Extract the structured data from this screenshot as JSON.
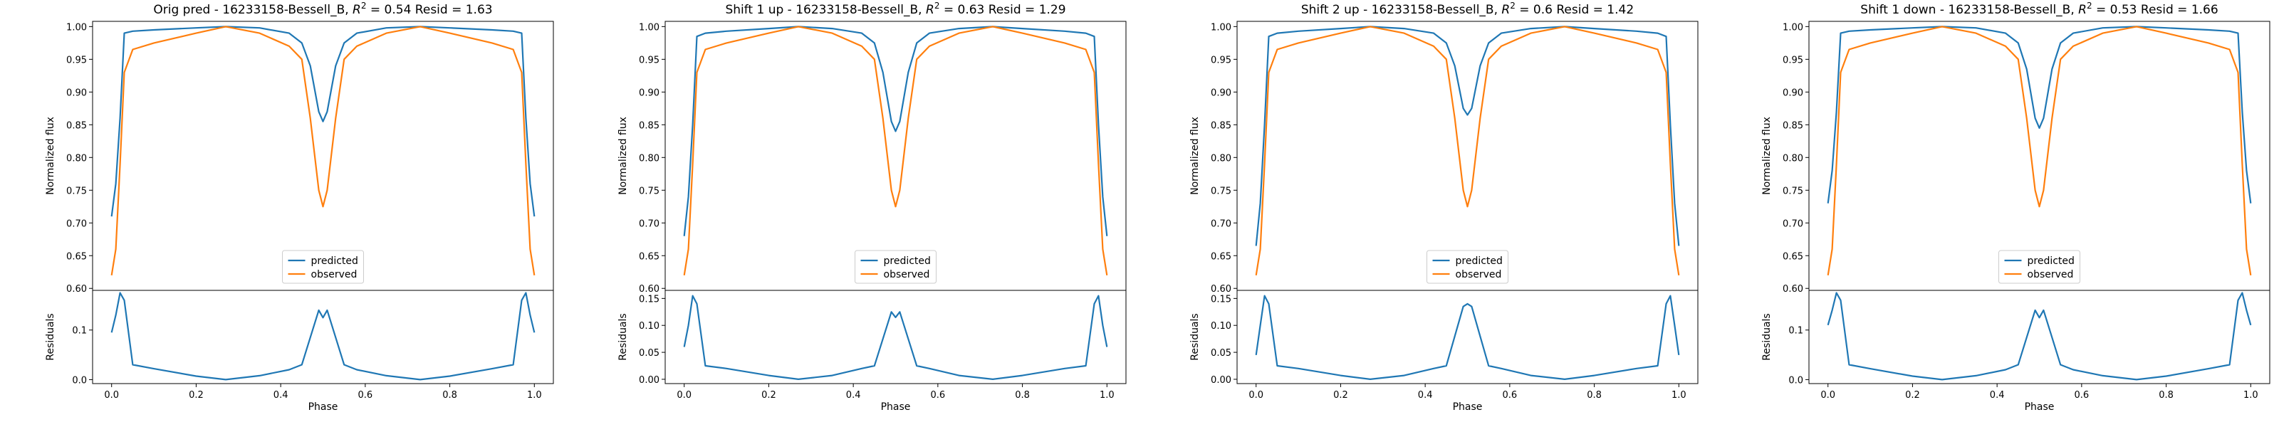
{
  "colors": {
    "predicted": "#1f77b4",
    "observed": "#ff7f0e"
  },
  "panels": [
    {
      "title_prefix": "Orig pred - 16233158-Bessell_B, ",
      "r2_symbol": "R",
      "r2_sup": "2",
      "title_suffix": " = 0.54 Resid = 1.63",
      "flux_ylabel": "Normalized flux",
      "resid_ylabel": "Residuals",
      "xlabel": "Phase",
      "flux_ticks": [
        "0.60",
        "0.65",
        "0.70",
        "0.75",
        "0.80",
        "0.85",
        "0.90",
        "0.95",
        "1.00"
      ],
      "resid_ticks": [
        "0.0",
        "0.1"
      ],
      "x_ticks": [
        "0.0",
        "0.2",
        "0.4",
        "0.6",
        "0.8",
        "1.0"
      ],
      "legend": [
        "predicted",
        "observed"
      ]
    },
    {
      "title_prefix": "Shift 1 up - 16233158-Bessell_B, ",
      "r2_symbol": "R",
      "r2_sup": "2",
      "title_suffix": " = 0.63 Resid = 1.29",
      "flux_ylabel": "Normalized flux",
      "resid_ylabel": "Residuals",
      "xlabel": "Phase",
      "flux_ticks": [
        "0.60",
        "0.65",
        "0.70",
        "0.75",
        "0.80",
        "0.85",
        "0.90",
        "0.95",
        "1.00"
      ],
      "resid_ticks": [
        "0.00",
        "0.05",
        "0.10",
        "0.15"
      ],
      "x_ticks": [
        "0.0",
        "0.2",
        "0.4",
        "0.6",
        "0.8",
        "1.0"
      ],
      "legend": [
        "predicted",
        "observed"
      ]
    },
    {
      "title_prefix": "Shift 2 up - 16233158-Bessell_B, ",
      "r2_symbol": "R",
      "r2_sup": "2",
      "title_suffix": " = 0.6 Resid = 1.42",
      "flux_ylabel": "Normalized flux",
      "resid_ylabel": "Residuals",
      "xlabel": "Phase",
      "flux_ticks": [
        "0.60",
        "0.65",
        "0.70",
        "0.75",
        "0.80",
        "0.85",
        "0.90",
        "0.95",
        "1.00"
      ],
      "resid_ticks": [
        "0.00",
        "0.05",
        "0.10",
        "0.15"
      ],
      "x_ticks": [
        "0.0",
        "0.2",
        "0.4",
        "0.6",
        "0.8",
        "1.0"
      ],
      "legend": [
        "predicted",
        "observed"
      ]
    },
    {
      "title_prefix": "Shift 1 down - 16233158-Bessell_B, ",
      "r2_symbol": "R",
      "r2_sup": "2",
      "title_suffix": " = 0.53 Resid = 1.66",
      "flux_ylabel": "Normalized flux",
      "resid_ylabel": "Residuals",
      "xlabel": "Phase",
      "flux_ticks": [
        "0.60",
        "0.65",
        "0.70",
        "0.75",
        "0.80",
        "0.85",
        "0.90",
        "0.95",
        "1.00"
      ],
      "resid_ticks": [
        "0.0",
        "0.1"
      ],
      "x_ticks": [
        "0.0",
        "0.2",
        "0.4",
        "0.6",
        "0.8",
        "1.0"
      ],
      "legend": [
        "predicted",
        "observed"
      ]
    }
  ],
  "chart_data": [
    {
      "type": "line",
      "title": "Orig pred - 16233158-Bessell_B, R^2 = 0.54 Resid = 1.63",
      "xlabel": "Phase",
      "ylabel": "Normalized flux",
      "xlim": [
        0,
        1
      ],
      "ylim": [
        0.6,
        1.0
      ],
      "legend_position": "bottom-center",
      "x": [
        0.0,
        0.01,
        0.02,
        0.03,
        0.05,
        0.1,
        0.2,
        0.27,
        0.35,
        0.42,
        0.45,
        0.47,
        0.49,
        0.5,
        0.51,
        0.53,
        0.55,
        0.58,
        0.65,
        0.73,
        0.8,
        0.9,
        0.95,
        0.97,
        0.98,
        0.99,
        1.0
      ],
      "series": [
        {
          "name": "predicted",
          "values": [
            0.71,
            0.76,
            0.86,
            0.99,
            0.993,
            0.995,
            0.998,
            1.0,
            0.998,
            0.99,
            0.975,
            0.94,
            0.87,
            0.855,
            0.87,
            0.94,
            0.975,
            0.99,
            0.998,
            1.0,
            0.998,
            0.995,
            0.993,
            0.99,
            0.86,
            0.76,
            0.71
          ]
        },
        {
          "name": "observed",
          "values": [
            0.62,
            0.66,
            0.79,
            0.93,
            0.965,
            0.975,
            0.99,
            1.0,
            0.99,
            0.97,
            0.95,
            0.86,
            0.75,
            0.725,
            0.75,
            0.86,
            0.95,
            0.97,
            0.99,
            1.0,
            0.99,
            0.975,
            0.965,
            0.93,
            0.79,
            0.66,
            0.62
          ]
        }
      ],
      "residuals": {
        "ylabel": "Residuals",
        "ylim": [
          0.0,
          0.18
        ],
        "values": [
          0.095,
          0.13,
          0.175,
          0.16,
          0.03,
          0.022,
          0.007,
          0.0,
          0.008,
          0.02,
          0.03,
          0.085,
          0.14,
          0.125,
          0.14,
          0.085,
          0.03,
          0.02,
          0.008,
          0.0,
          0.007,
          0.022,
          0.03,
          0.16,
          0.175,
          0.13,
          0.095
        ]
      }
    },
    {
      "type": "line",
      "title": "Shift 1 up - 16233158-Bessell_B, R^2 = 0.63 Resid = 1.29",
      "xlabel": "Phase",
      "ylabel": "Normalized flux",
      "xlim": [
        0,
        1
      ],
      "ylim": [
        0.6,
        1.0
      ],
      "legend_position": "bottom-center",
      "x": [
        0.0,
        0.01,
        0.02,
        0.03,
        0.05,
        0.1,
        0.2,
        0.27,
        0.35,
        0.42,
        0.45,
        0.47,
        0.49,
        0.5,
        0.51,
        0.53,
        0.55,
        0.58,
        0.65,
        0.73,
        0.8,
        0.9,
        0.95,
        0.97,
        0.98,
        0.99,
        1.0
      ],
      "series": [
        {
          "name": "predicted",
          "values": [
            0.68,
            0.74,
            0.85,
            0.985,
            0.99,
            0.993,
            0.997,
            1.0,
            0.997,
            0.99,
            0.975,
            0.93,
            0.855,
            0.84,
            0.855,
            0.93,
            0.975,
            0.99,
            0.997,
            1.0,
            0.997,
            0.993,
            0.99,
            0.985,
            0.85,
            0.74,
            0.68
          ]
        },
        {
          "name": "observed",
          "values": [
            0.62,
            0.66,
            0.79,
            0.93,
            0.965,
            0.975,
            0.99,
            1.0,
            0.99,
            0.97,
            0.95,
            0.86,
            0.75,
            0.725,
            0.75,
            0.86,
            0.95,
            0.97,
            0.99,
            1.0,
            0.99,
            0.975,
            0.965,
            0.93,
            0.79,
            0.66,
            0.62
          ]
        }
      ],
      "residuals": {
        "ylabel": "Residuals",
        "ylim": [
          0.0,
          0.165
        ],
        "values": [
          0.06,
          0.1,
          0.155,
          0.14,
          0.025,
          0.02,
          0.007,
          0.0,
          0.007,
          0.02,
          0.025,
          0.075,
          0.125,
          0.115,
          0.125,
          0.075,
          0.025,
          0.02,
          0.007,
          0.0,
          0.007,
          0.02,
          0.025,
          0.14,
          0.155,
          0.1,
          0.06
        ]
      }
    },
    {
      "type": "line",
      "title": "Shift 2 up - 16233158-Bessell_B, R^2 = 0.6 Resid = 1.42",
      "xlabel": "Phase",
      "ylabel": "Normalized flux",
      "xlim": [
        0,
        1
      ],
      "ylim": [
        0.6,
        1.0
      ],
      "legend_position": "bottom-center",
      "x": [
        0.0,
        0.01,
        0.02,
        0.03,
        0.05,
        0.1,
        0.2,
        0.27,
        0.35,
        0.42,
        0.45,
        0.47,
        0.49,
        0.5,
        0.51,
        0.53,
        0.55,
        0.58,
        0.65,
        0.73,
        0.8,
        0.9,
        0.95,
        0.97,
        0.98,
        0.99,
        1.0
      ],
      "series": [
        {
          "name": "predicted",
          "values": [
            0.665,
            0.73,
            0.85,
            0.985,
            0.99,
            0.993,
            0.997,
            1.0,
            0.997,
            0.99,
            0.975,
            0.94,
            0.875,
            0.865,
            0.875,
            0.94,
            0.975,
            0.99,
            0.997,
            1.0,
            0.997,
            0.993,
            0.99,
            0.985,
            0.85,
            0.73,
            0.665
          ]
        },
        {
          "name": "observed",
          "values": [
            0.62,
            0.66,
            0.79,
            0.93,
            0.965,
            0.975,
            0.99,
            1.0,
            0.99,
            0.97,
            0.95,
            0.86,
            0.75,
            0.725,
            0.75,
            0.86,
            0.95,
            0.97,
            0.99,
            1.0,
            0.99,
            0.975,
            0.965,
            0.93,
            0.79,
            0.66,
            0.62
          ]
        }
      ],
      "residuals": {
        "ylabel": "Residuals",
        "ylim": [
          0.0,
          0.165
        ],
        "values": [
          0.045,
          0.1,
          0.155,
          0.14,
          0.025,
          0.02,
          0.007,
          0.0,
          0.007,
          0.02,
          0.025,
          0.08,
          0.135,
          0.14,
          0.135,
          0.08,
          0.025,
          0.02,
          0.007,
          0.0,
          0.007,
          0.02,
          0.025,
          0.14,
          0.155,
          0.1,
          0.045
        ]
      }
    },
    {
      "type": "line",
      "title": "Shift 1 down - 16233158-Bessell_B, R^2 = 0.53 Resid = 1.66",
      "xlabel": "Phase",
      "ylabel": "Normalized flux",
      "xlim": [
        0,
        1
      ],
      "ylim": [
        0.6,
        1.0
      ],
      "legend_position": "bottom-center",
      "x": [
        0.0,
        0.01,
        0.02,
        0.03,
        0.05,
        0.1,
        0.2,
        0.27,
        0.35,
        0.42,
        0.45,
        0.47,
        0.49,
        0.5,
        0.51,
        0.53,
        0.55,
        0.58,
        0.65,
        0.73,
        0.8,
        0.9,
        0.95,
        0.97,
        0.98,
        0.99,
        1.0
      ],
      "series": [
        {
          "name": "predicted",
          "values": [
            0.73,
            0.78,
            0.87,
            0.99,
            0.993,
            0.995,
            0.998,
            1.0,
            0.998,
            0.99,
            0.975,
            0.935,
            0.86,
            0.845,
            0.86,
            0.935,
            0.975,
            0.99,
            0.998,
            1.0,
            0.998,
            0.995,
            0.993,
            0.99,
            0.87,
            0.78,
            0.73
          ]
        },
        {
          "name": "observed",
          "values": [
            0.62,
            0.66,
            0.79,
            0.93,
            0.965,
            0.975,
            0.99,
            1.0,
            0.99,
            0.97,
            0.95,
            0.86,
            0.75,
            0.725,
            0.75,
            0.86,
            0.95,
            0.97,
            0.99,
            1.0,
            0.99,
            0.975,
            0.965,
            0.93,
            0.79,
            0.66,
            0.62
          ]
        }
      ],
      "residuals": {
        "ylabel": "Residuals",
        "ylim": [
          0.0,
          0.18
        ],
        "values": [
          0.11,
          0.14,
          0.175,
          0.16,
          0.03,
          0.022,
          0.007,
          0.0,
          0.008,
          0.02,
          0.03,
          0.085,
          0.14,
          0.125,
          0.14,
          0.085,
          0.03,
          0.02,
          0.008,
          0.0,
          0.007,
          0.022,
          0.03,
          0.16,
          0.175,
          0.14,
          0.11
        ]
      }
    }
  ]
}
